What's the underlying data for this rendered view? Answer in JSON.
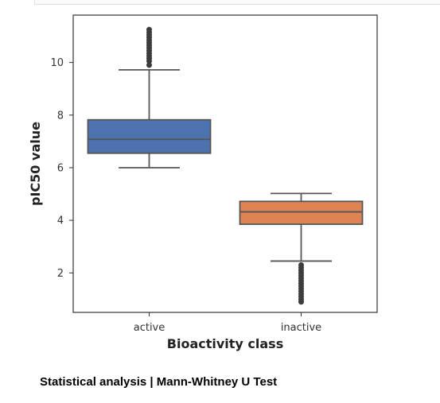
{
  "chart_data": {
    "type": "box",
    "xlabel": "Bioactivity class",
    "ylabel": "pIC50 value",
    "ylim": [
      0.5,
      11.8
    ],
    "yticks": [
      2,
      4,
      6,
      8,
      10
    ],
    "grid": false,
    "categories": [
      "active",
      "inactive"
    ],
    "boxes": [
      {
        "category": "active",
        "color": "#4c72b0",
        "whisker_low": 6.0,
        "q1": 6.55,
        "median": 7.08,
        "q3": 7.82,
        "whisker_high": 9.72,
        "outliers": [
          9.9,
          10.05,
          10.15,
          10.25,
          10.35,
          10.45,
          10.55,
          10.65,
          10.75,
          10.85,
          10.95,
          11.05,
          11.15,
          11.25
        ]
      },
      {
        "category": "inactive",
        "color": "#dd8452",
        "whisker_low": 2.45,
        "q1": 3.85,
        "median": 4.32,
        "q3": 4.72,
        "whisker_high": 5.02,
        "outliers": [
          2.3,
          2.2,
          2.1,
          2.0,
          1.9,
          1.8,
          1.7,
          1.6,
          1.5,
          1.4,
          1.3,
          1.2,
          1.1,
          1.0,
          0.9
        ]
      }
    ]
  },
  "caption": "Statistical analysis | Mann-Whitney U Test"
}
